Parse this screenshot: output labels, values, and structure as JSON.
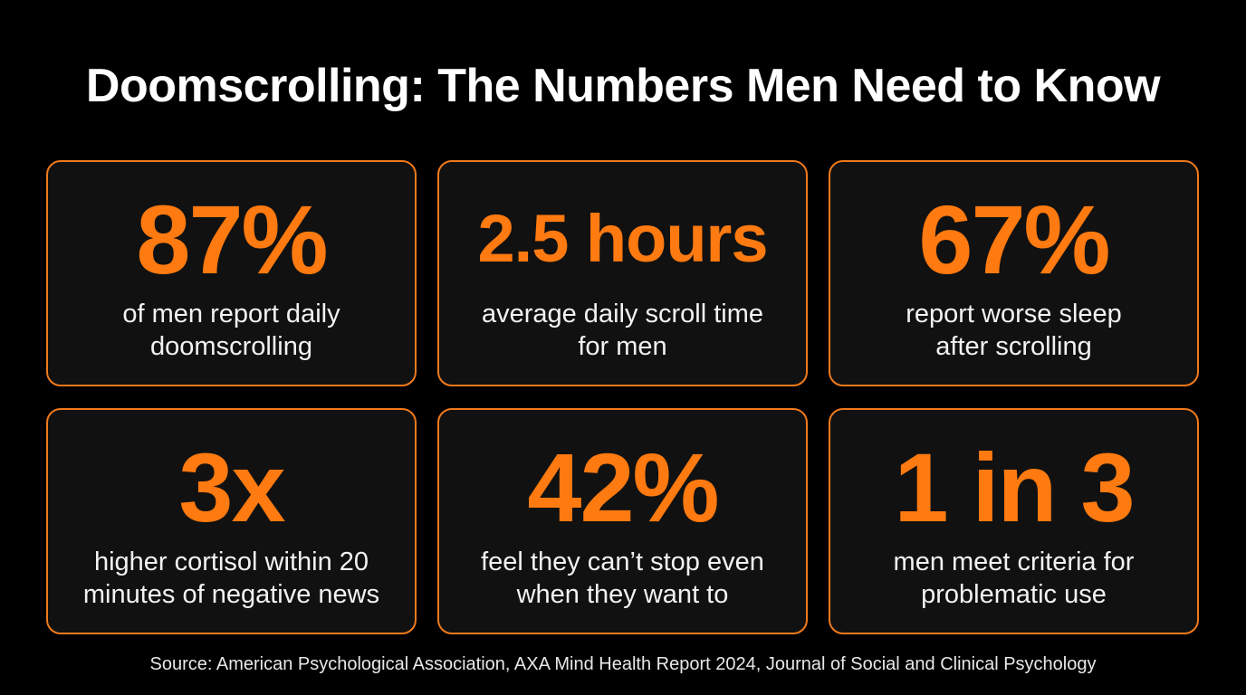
{
  "title": "Doomscrolling: The Numbers Men Need to Know",
  "colors": {
    "background": "#000000",
    "card_background": "#111111",
    "accent": "#ff7a10",
    "border": "#f07a1c",
    "text": "#ffffff"
  },
  "cards": [
    {
      "stat": "87%",
      "line1": "of men report daily",
      "line2": "doomscrolling"
    },
    {
      "stat": "2.5 hours",
      "line1": "average daily scroll time",
      "line2": "for men"
    },
    {
      "stat": "67%",
      "line1": "report worse sleep",
      "line2": "after scrolling"
    },
    {
      "stat": "3x",
      "line1": "higher cortisol within 20",
      "line2": "minutes of negative news"
    },
    {
      "stat": "42%",
      "line1": "feel they can’t stop even",
      "line2": "when they want to"
    },
    {
      "stat": "1 in 3",
      "line1": "men meet criteria for",
      "line2": "problematic use"
    }
  ],
  "source": "Source: American Psychological Association, AXA Mind Health Report 2024, Journal of Social and Clinical Psychology"
}
